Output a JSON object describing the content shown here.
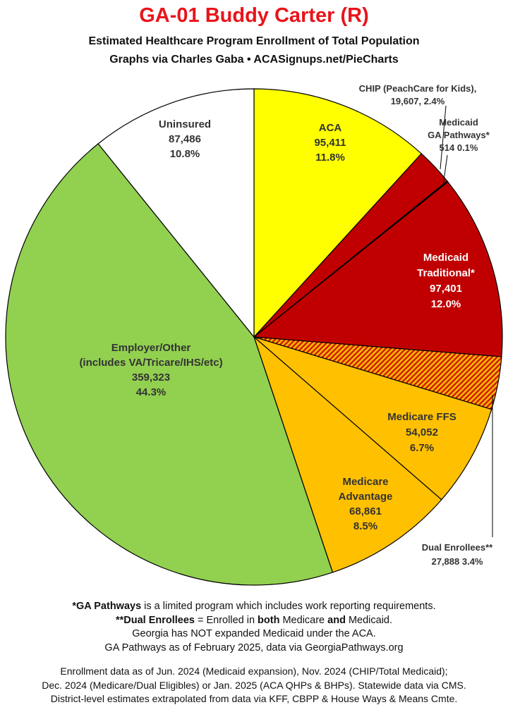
{
  "header": {
    "title": "GA-01 Buddy Carter (R)",
    "subtitle_line1": "Estimated Healthcare Program Enrollment of Total Population",
    "subtitle_line2": "Graphs via Charles Gaba  •  ACASignups.net/PieCharts"
  },
  "chart_data": {
    "type": "pie",
    "slices": [
      {
        "name": "ACA",
        "value": 95411,
        "pct": "11.8%",
        "color": "#ffff00",
        "label_lines": [
          "ACA",
          "95,411",
          "11.8%"
        ],
        "text_color": "#333333"
      },
      {
        "name": "CHIP (PeachCare for Kids)",
        "value": 19607,
        "pct": "2.4%",
        "color": "#c00000",
        "label_lines": [
          "CHIP (PeachCare for Kids),",
          "19,607, 2.4%"
        ],
        "text_color": "#333333"
      },
      {
        "name": "Medicaid GA Pathways*",
        "value": 514,
        "pct": "0.1%",
        "color": "#7a0000",
        "label_lines": [
          "Medicaid",
          "GA Pathways*",
          "514 0.1%"
        ],
        "text_color": "#333333"
      },
      {
        "name": "Medicaid Traditional*",
        "value": 97401,
        "pct": "12.0%",
        "color": "#c00000",
        "label_lines": [
          "Medicaid",
          "Traditional*",
          "97,401",
          "12.0%"
        ],
        "text_color": "#ffffff"
      },
      {
        "name": "Dual Enrollees**",
        "value": 27888,
        "pct": "3.4%",
        "color": "#e06000",
        "pattern": "hatch",
        "label_lines": [
          "Dual Enrollees**",
          "27,888 3.4%"
        ],
        "text_color": "#333333"
      },
      {
        "name": "Medicare FFS",
        "value": 54052,
        "pct": "6.7%",
        "color": "#ffc000",
        "label_lines": [
          "Medicare FFS",
          "54,052",
          "6.7%"
        ],
        "text_color": "#333333"
      },
      {
        "name": "Medicare Advantage",
        "value": 68861,
        "pct": "8.5%",
        "color": "#ffc000",
        "label_lines": [
          "Medicare",
          "Advantage",
          "68,861",
          "8.5%"
        ],
        "text_color": "#333333"
      },
      {
        "name": "Employer/Other",
        "value": 359323,
        "pct": "44.3%",
        "color": "#92d050",
        "label_lines": [
          "Employer/Other",
          "(includes VA/Tricare/IHS/etc)",
          "359,323",
          "44.3%"
        ],
        "text_color": "#333333"
      },
      {
        "name": "Uninsured",
        "value": 87486,
        "pct": "10.8%",
        "color": "#ffffff",
        "label_lines": [
          "Uninsured",
          "87,486",
          "10.8%"
        ],
        "text_color": "#333333"
      }
    ]
  },
  "notes": {
    "line1_bold": "*GA Pathways",
    "line1_rest": " is a limited program which includes work reporting requirements.",
    "line2_bold": "**Dual Enrollees",
    "line2_mid1": " = Enrolled in ",
    "line2_both": "both",
    "line2_mid2": " Medicare ",
    "line2_and": "and",
    "line2_end": " Medicaid.",
    "line3": "Georgia has NOT expanded Medicaid under the ACA.",
    "line4": "GA Pathways as of February 2025, data via GeorgiaPathways.org"
  },
  "sources": {
    "line1": "Enrollment data as of Jun. 2024 (Medicaid expansion), Nov. 2024 (CHIP/Total Medicaid);",
    "line2": "Dec. 2024 (Medicare/Dual Eligibles) or Jan. 2025 (ACA QHPs & BHPs). Statewide data via CMS.",
    "line3": "District-level estimates extrapolated from data via KFF, CBPP & House Ways & Means Cmte."
  }
}
